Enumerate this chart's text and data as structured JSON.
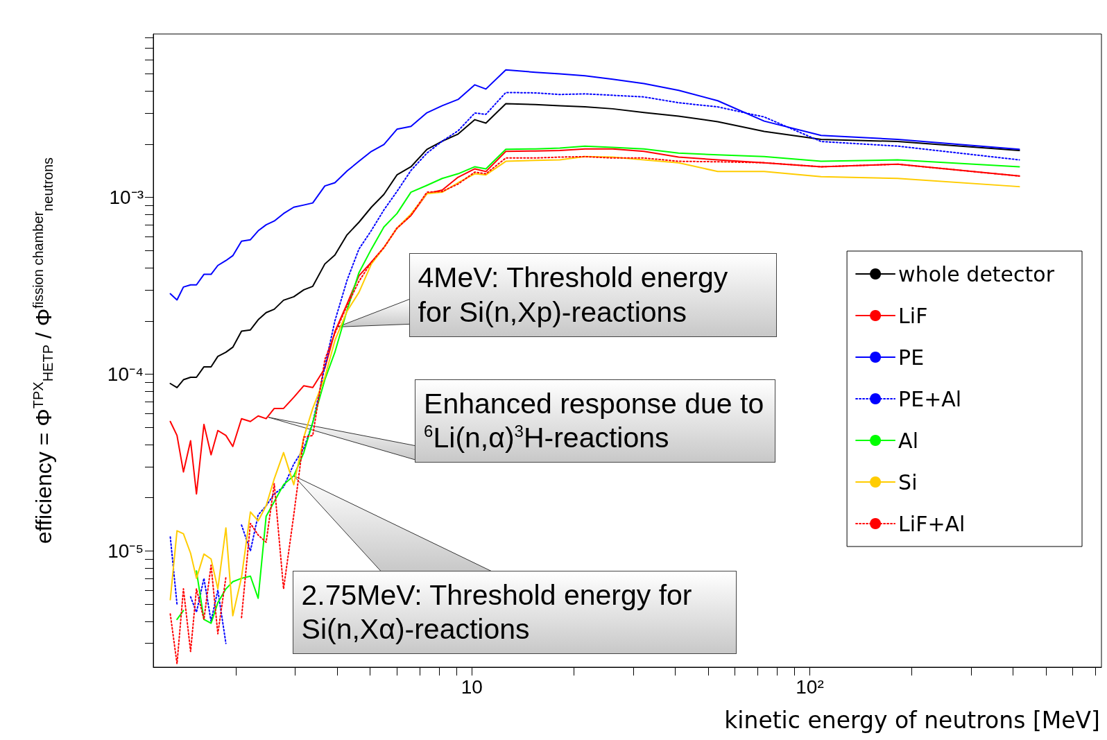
{
  "chart_data": {
    "type": "line",
    "xlabel": "kinetic energy of neutrons [MeV]",
    "ylabel": "efficiency = Φ$^{TPX}$$_{HETP}$ / Φ$^{fission chamber}$$_{neutrons}$",
    "log": "xy",
    "marker": "none",
    "legend": "right",
    "xlim": [
      1.14,
      730
    ],
    "xticks": [
      {
        "value": 2,
        "label": null
      },
      {
        "value": 3,
        "label": null
      },
      {
        "value": 4,
        "label": null
      },
      {
        "value": 5,
        "label": null
      },
      {
        "value": 6,
        "label": null
      },
      {
        "value": 7,
        "label": null
      },
      {
        "value": 8,
        "label": null
      },
      {
        "value": 9,
        "label": null
      },
      10,
      {
        "value": 20,
        "label": null
      },
      {
        "value": 30,
        "label": null
      },
      {
        "value": 40,
        "label": null
      },
      {
        "value": 50,
        "label": null
      },
      {
        "value": 60,
        "label": null
      },
      {
        "value": 70,
        "label": null
      },
      {
        "value": 80,
        "label": null
      },
      {
        "value": 90,
        "label": null
      },
      {
        "value": 100,
        "label": "10²"
      },
      {
        "value": 200,
        "label": null
      },
      {
        "value": 300,
        "label": null
      },
      {
        "value": 400,
        "label": null
      },
      {
        "value": 500,
        "label": null
      },
      {
        "value": 600,
        "label": null
      },
      {
        "value": 700,
        "label": null
      }
    ],
    "ylim": [
      2.2e-06,
      0.0084
    ],
    "yticks": [
      {
        "value": 3e-06,
        "label": null
      },
      {
        "value": 4e-06,
        "label": null
      },
      {
        "value": 5e-06,
        "label": null
      },
      {
        "value": 6e-06,
        "label": null
      },
      {
        "value": 7e-06,
        "label": null
      },
      {
        "value": 8e-06,
        "label": null
      },
      {
        "value": 9e-06,
        "label": null
      },
      {
        "value": 1e-05,
        "label": "10⁻⁵"
      },
      {
        "value": 2e-05,
        "label": null
      },
      {
        "value": 3e-05,
        "label": null
      },
      {
        "value": 4e-05,
        "label": null
      },
      {
        "value": 5e-05,
        "label": null
      },
      {
        "value": 6e-05,
        "label": null
      },
      {
        "value": 7e-05,
        "label": null
      },
      {
        "value": 8e-05,
        "label": null
      },
      {
        "value": 9e-05,
        "label": null
      },
      {
        "value": 0.0001,
        "label": "10⁻⁴"
      },
      {
        "value": 0.0002,
        "label": null
      },
      {
        "value": 0.0003,
        "label": null
      },
      {
        "value": 0.0004,
        "label": null
      },
      {
        "value": 0.0005,
        "label": null
      },
      {
        "value": 0.0006,
        "label": null
      },
      {
        "value": 0.0007,
        "label": null
      },
      {
        "value": 0.0008,
        "label": null
      },
      {
        "value": 0.0009,
        "label": null
      },
      {
        "value": 0.001,
        "label": "10⁻³"
      },
      {
        "value": 0.002,
        "label": null
      },
      {
        "value": 0.003,
        "label": null
      },
      {
        "value": 0.004,
        "label": null
      },
      {
        "value": 0.005,
        "label": null
      },
      {
        "value": 0.006,
        "label": null
      },
      {
        "value": 0.007,
        "label": null
      },
      {
        "value": 0.008,
        "label": null
      }
    ],
    "x": [
      1.28,
      1.34,
      1.4,
      1.47,
      1.53,
      1.61,
      1.69,
      1.77,
      1.87,
      1.96,
      2.08,
      2.21,
      2.33,
      2.46,
      2.6,
      2.77,
      2.97,
      3.18,
      3.38,
      3.67,
      3.93,
      4.27,
      4.63,
      5.04,
      5.49,
      6.0,
      6.6,
      7.36,
      8.17,
      9.1,
      10.2,
      11.0,
      12.6,
      15.4,
      18.2,
      21.6,
      26.1,
      32.3,
      40.9,
      53.4,
      73.3,
      108,
      182,
      417
    ],
    "series": [
      {
        "name": "whole detector",
        "color": "#000000",
        "values": [
          8.85e-05,
          8.4e-05,
          9.3e-05,
          9.6e-05,
          9.6e-05,
          0.00011,
          0.00011,
          0.000126,
          0.000133,
          0.000142,
          0.000175,
          0.000178,
          0.000203,
          0.000223,
          0.000233,
          0.000262,
          0.000274,
          0.0003,
          0.000314,
          0.00042,
          0.000472,
          0.000614,
          0.000723,
          0.00088,
          0.00104,
          0.00134,
          0.00149,
          0.00187,
          0.00208,
          0.00228,
          0.00275,
          0.00263,
          0.00339,
          0.00335,
          0.0033,
          0.00325,
          0.00317,
          0.00302,
          0.00288,
          0.00268,
          0.00236,
          0.00213,
          0.00207,
          0.00184
        ]
      },
      {
        "name": "LiF",
        "color": "#ff0000",
        "values": [
          5.4e-05,
          4.5e-05,
          2.8e-05,
          4.2e-05,
          2.1e-05,
          5.2e-05,
          3.5e-05,
          4.8e-05,
          4.5e-05,
          3.9e-05,
          5.6e-05,
          5.4e-05,
          5.8e-05,
          5.6e-05,
          6.4e-05,
          6.4e-05,
          7.4e-05,
          8.6e-05,
          8.4e-05,
          0.000108,
          0.000174,
          0.00025,
          0.00036,
          0.00043,
          0.00052,
          0.00067,
          0.00079,
          0.00105,
          0.0011,
          0.0013,
          0.00145,
          0.0014,
          0.00182,
          0.00183,
          0.00184,
          0.00188,
          0.00188,
          0.00182,
          0.00169,
          0.00163,
          0.00157,
          0.00149,
          0.00154,
          0.00132
        ]
      },
      {
        "name": "PE",
        "color": "#0000ff",
        "values": [
          0.000285,
          0.000263,
          0.000311,
          0.00032,
          0.00032,
          0.000367,
          0.000367,
          0.000412,
          0.000439,
          0.000468,
          0.000565,
          0.000576,
          0.000647,
          0.0007,
          0.000735,
          0.00081,
          0.00088,
          0.000905,
          0.00093,
          0.00116,
          0.00121,
          0.00141,
          0.0016,
          0.00182,
          0.00199,
          0.00243,
          0.00252,
          0.00301,
          0.0033,
          0.00358,
          0.00433,
          0.0041,
          0.00526,
          0.0051,
          0.005,
          0.00487,
          0.00466,
          0.0044,
          0.00403,
          0.00352,
          0.0027,
          0.00224,
          0.00213,
          0.00187
        ]
      },
      {
        "name": "PE+Al",
        "color": "#0000ff",
        "line_style": "dotted",
        "values": [
          1.2e-05,
          5e-06,
          null,
          5.5e-06,
          4.5e-06,
          7e-06,
          4e-06,
          6e-06,
          3e-06,
          null,
          1.4e-05,
          1e-05,
          1.6e-05,
          1.8e-05,
          2.1e-05,
          2.3e-05,
          3.1e-05,
          3.8e-05,
          5.3e-05,
          0.00011,
          0.0002,
          0.00034,
          0.00051,
          0.00065,
          0.00085,
          0.00108,
          0.00142,
          0.00178,
          0.00208,
          0.00238,
          0.003,
          0.00295,
          0.00392,
          0.0039,
          0.00382,
          0.00385,
          0.00378,
          0.0037,
          0.00343,
          0.00325,
          0.00285,
          0.00207,
          0.00195,
          0.00163
        ]
      },
      {
        "name": "Al",
        "color": "#00ff00",
        "values": [
          null,
          4.1e-06,
          4.6e-06,
          null,
          7.7e-06,
          4.1e-06,
          3.9e-06,
          5.1e-06,
          6.1e-06,
          6.7e-06,
          7e-06,
          7.2e-06,
          5.4e-06,
          1.57e-05,
          1.9e-05,
          2.37e-05,
          2.66e-05,
          3.6e-05,
          5.35e-05,
          9.3e-05,
          0.000133,
          0.00023,
          0.000375,
          0.00051,
          0.00068,
          0.00081,
          0.00107,
          0.00117,
          0.00128,
          0.00136,
          0.00149,
          0.00145,
          0.00187,
          0.00188,
          0.0019,
          0.00195,
          0.00192,
          0.00188,
          0.00178,
          0.00174,
          0.0017,
          0.0016,
          0.00163,
          0.00149
        ]
      },
      {
        "name": "Si",
        "color": "#ffcc00",
        "values": [
          5.3e-06,
          1.3e-05,
          1.25e-05,
          9.7e-06,
          7e-06,
          9.6e-06,
          9e-06,
          6.1e-06,
          1.35e-05,
          4.3e-06,
          7.1e-06,
          1.66e-05,
          1.48e-05,
          1.8e-05,
          2.56e-05,
          3.6e-05,
          2.37e-05,
          4.4e-05,
          6.4e-05,
          9.6e-05,
          0.000155,
          0.000227,
          0.00029,
          0.00042,
          0.00052,
          0.00067,
          0.000805,
          0.00105,
          0.00107,
          0.00121,
          0.00136,
          0.00134,
          0.0016,
          0.00162,
          0.00163,
          0.0017,
          0.00169,
          0.00163,
          0.00157,
          0.0014,
          0.0014,
          0.00131,
          0.00128,
          0.00115
        ]
      },
      {
        "name": "LiF+Al",
        "color": "#ff0000",
        "line_style": "dotted",
        "values": [
          4.4e-06,
          2.3e-06,
          6.1e-06,
          2.7e-06,
          6.1e-06,
          4.1e-06,
          8.3e-06,
          3.4e-06,
          7.1e-06,
          null,
          4.2e-06,
          1.43e-05,
          1.23e-05,
          1.12e-05,
          2.4e-05,
          6.1e-06,
          1.6e-05,
          4.4e-05,
          4.5e-05,
          0.000121,
          0.00017,
          0.000244,
          0.000335,
          0.00043,
          0.00052,
          0.00067,
          0.00079,
          0.00107,
          0.00108,
          0.00119,
          0.00139,
          0.00136,
          0.00167,
          0.00167,
          0.00169,
          0.0017,
          0.00167,
          0.00167,
          0.0016,
          0.00159,
          0.00157,
          0.00149,
          0.00154,
          0.00132
        ]
      }
    ],
    "annotations": [
      {
        "text": "4MeV: Threshold energy for Si(n,Xp)-reactions",
        "x": 4,
        "y": 0.000185
      },
      {
        "text": "Enhanced response due to $^{6}$Li(n,α)$^{3}$H-reactions",
        "x": 2.5,
        "y": 5.7e-05
      },
      {
        "text": "2.75MeV: Threshold energy for Si(n,Xα)-reactions",
        "x": 2.97,
        "y": 2.66e-05
      }
    ]
  }
}
